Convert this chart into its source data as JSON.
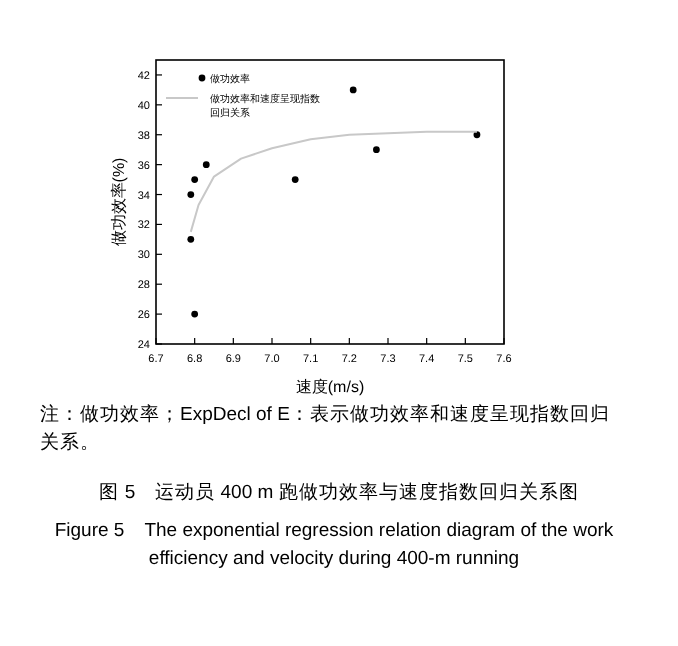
{
  "chart_data": {
    "type": "scatter",
    "title": "图 5　运动员 400 m 跑做功效率与速度指数回归关系图",
    "subtitle": "Figure 5　The exponential regression relation diagram of the work efficiency and velocity during 400-m running",
    "xlabel": "速度(m/s)",
    "ylabel": "做功效率(%)",
    "annotations": [
      "注：做功效率；ExpDecl of E：表示做功效率和速度呈现指数回归关系。"
    ],
    "xlim": [
      6.7,
      7.6
    ],
    "xticks": [
      6.7,
      6.8,
      6.9,
      {
        "value": 7,
        "label": "7.0"
      },
      7.1,
      7.2,
      7.3,
      7.4,
      7.5,
      7.6
    ],
    "ylim": [
      24,
      43
    ],
    "yticks": [
      24,
      26,
      28,
      30,
      32,
      34,
      36,
      38,
      40,
      42
    ],
    "legend": "top left",
    "grid": false,
    "series": [
      {
        "name": "做功效率",
        "type": "scatter",
        "marker": "circle",
        "color": "#000000",
        "x": [
          6.79,
          6.79,
          6.8,
          6.83,
          6.8,
          7.06,
          7.21,
          7.27,
          7.53
        ],
        "values": [
          31,
          34,
          35,
          36,
          26,
          35,
          41,
          37,
          38
        ]
      },
      {
        "name": "做功效率和速度呈现指数回归关系",
        "type": "line",
        "marker": "none",
        "line_style": "solid",
        "color": "#c8c8c8",
        "x": [
          6.79,
          6.81,
          6.85,
          6.92,
          7.0,
          7.1,
          7.2,
          7.3,
          7.4,
          7.53
        ],
        "values": [
          31.5,
          33.3,
          35.2,
          36.4,
          37.1,
          37.7,
          38.0,
          38.1,
          38.2,
          38.2
        ]
      }
    ]
  }
}
